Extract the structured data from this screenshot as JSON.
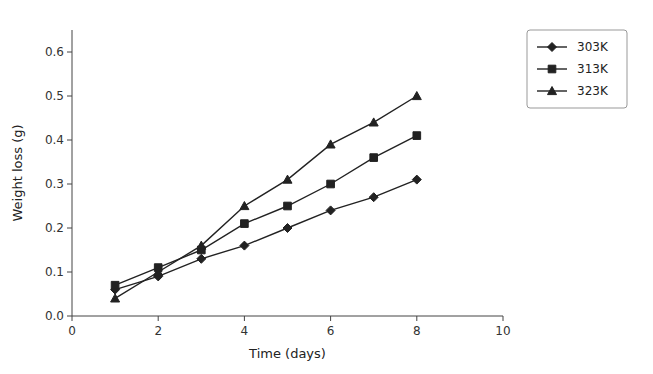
{
  "chart_data": {
    "type": "line",
    "x": [
      1,
      2,
      3,
      4,
      5,
      6,
      7,
      8
    ],
    "series": [
      {
        "name": "303K",
        "values": [
          0.06,
          0.09,
          0.13,
          0.16,
          0.2,
          0.24,
          0.27,
          0.31
        ],
        "marker": "diamond",
        "color": "#222222"
      },
      {
        "name": "313K",
        "values": [
          0.07,
          0.11,
          0.15,
          0.21,
          0.25,
          0.3,
          0.36,
          0.41
        ],
        "marker": "square",
        "color": "#222222"
      },
      {
        "name": "323K",
        "values": [
          0.04,
          0.1,
          0.16,
          0.25,
          0.31,
          0.39,
          0.44,
          0.5
        ],
        "marker": "triangle",
        "color": "#222222"
      }
    ],
    "xlabel": "Time (days)",
    "ylabel": "Weight loss (g)",
    "xlim": [
      0,
      10
    ],
    "ylim": [
      0,
      0.65
    ],
    "xticks": [
      0,
      2,
      4,
      6,
      8,
      10
    ],
    "yticks": [
      {
        "value": 0,
        "label": "0.0"
      },
      0.1,
      0.2,
      0.3,
      0.4,
      0.5,
      0.6
    ],
    "grid": false,
    "legend": "upper right"
  }
}
